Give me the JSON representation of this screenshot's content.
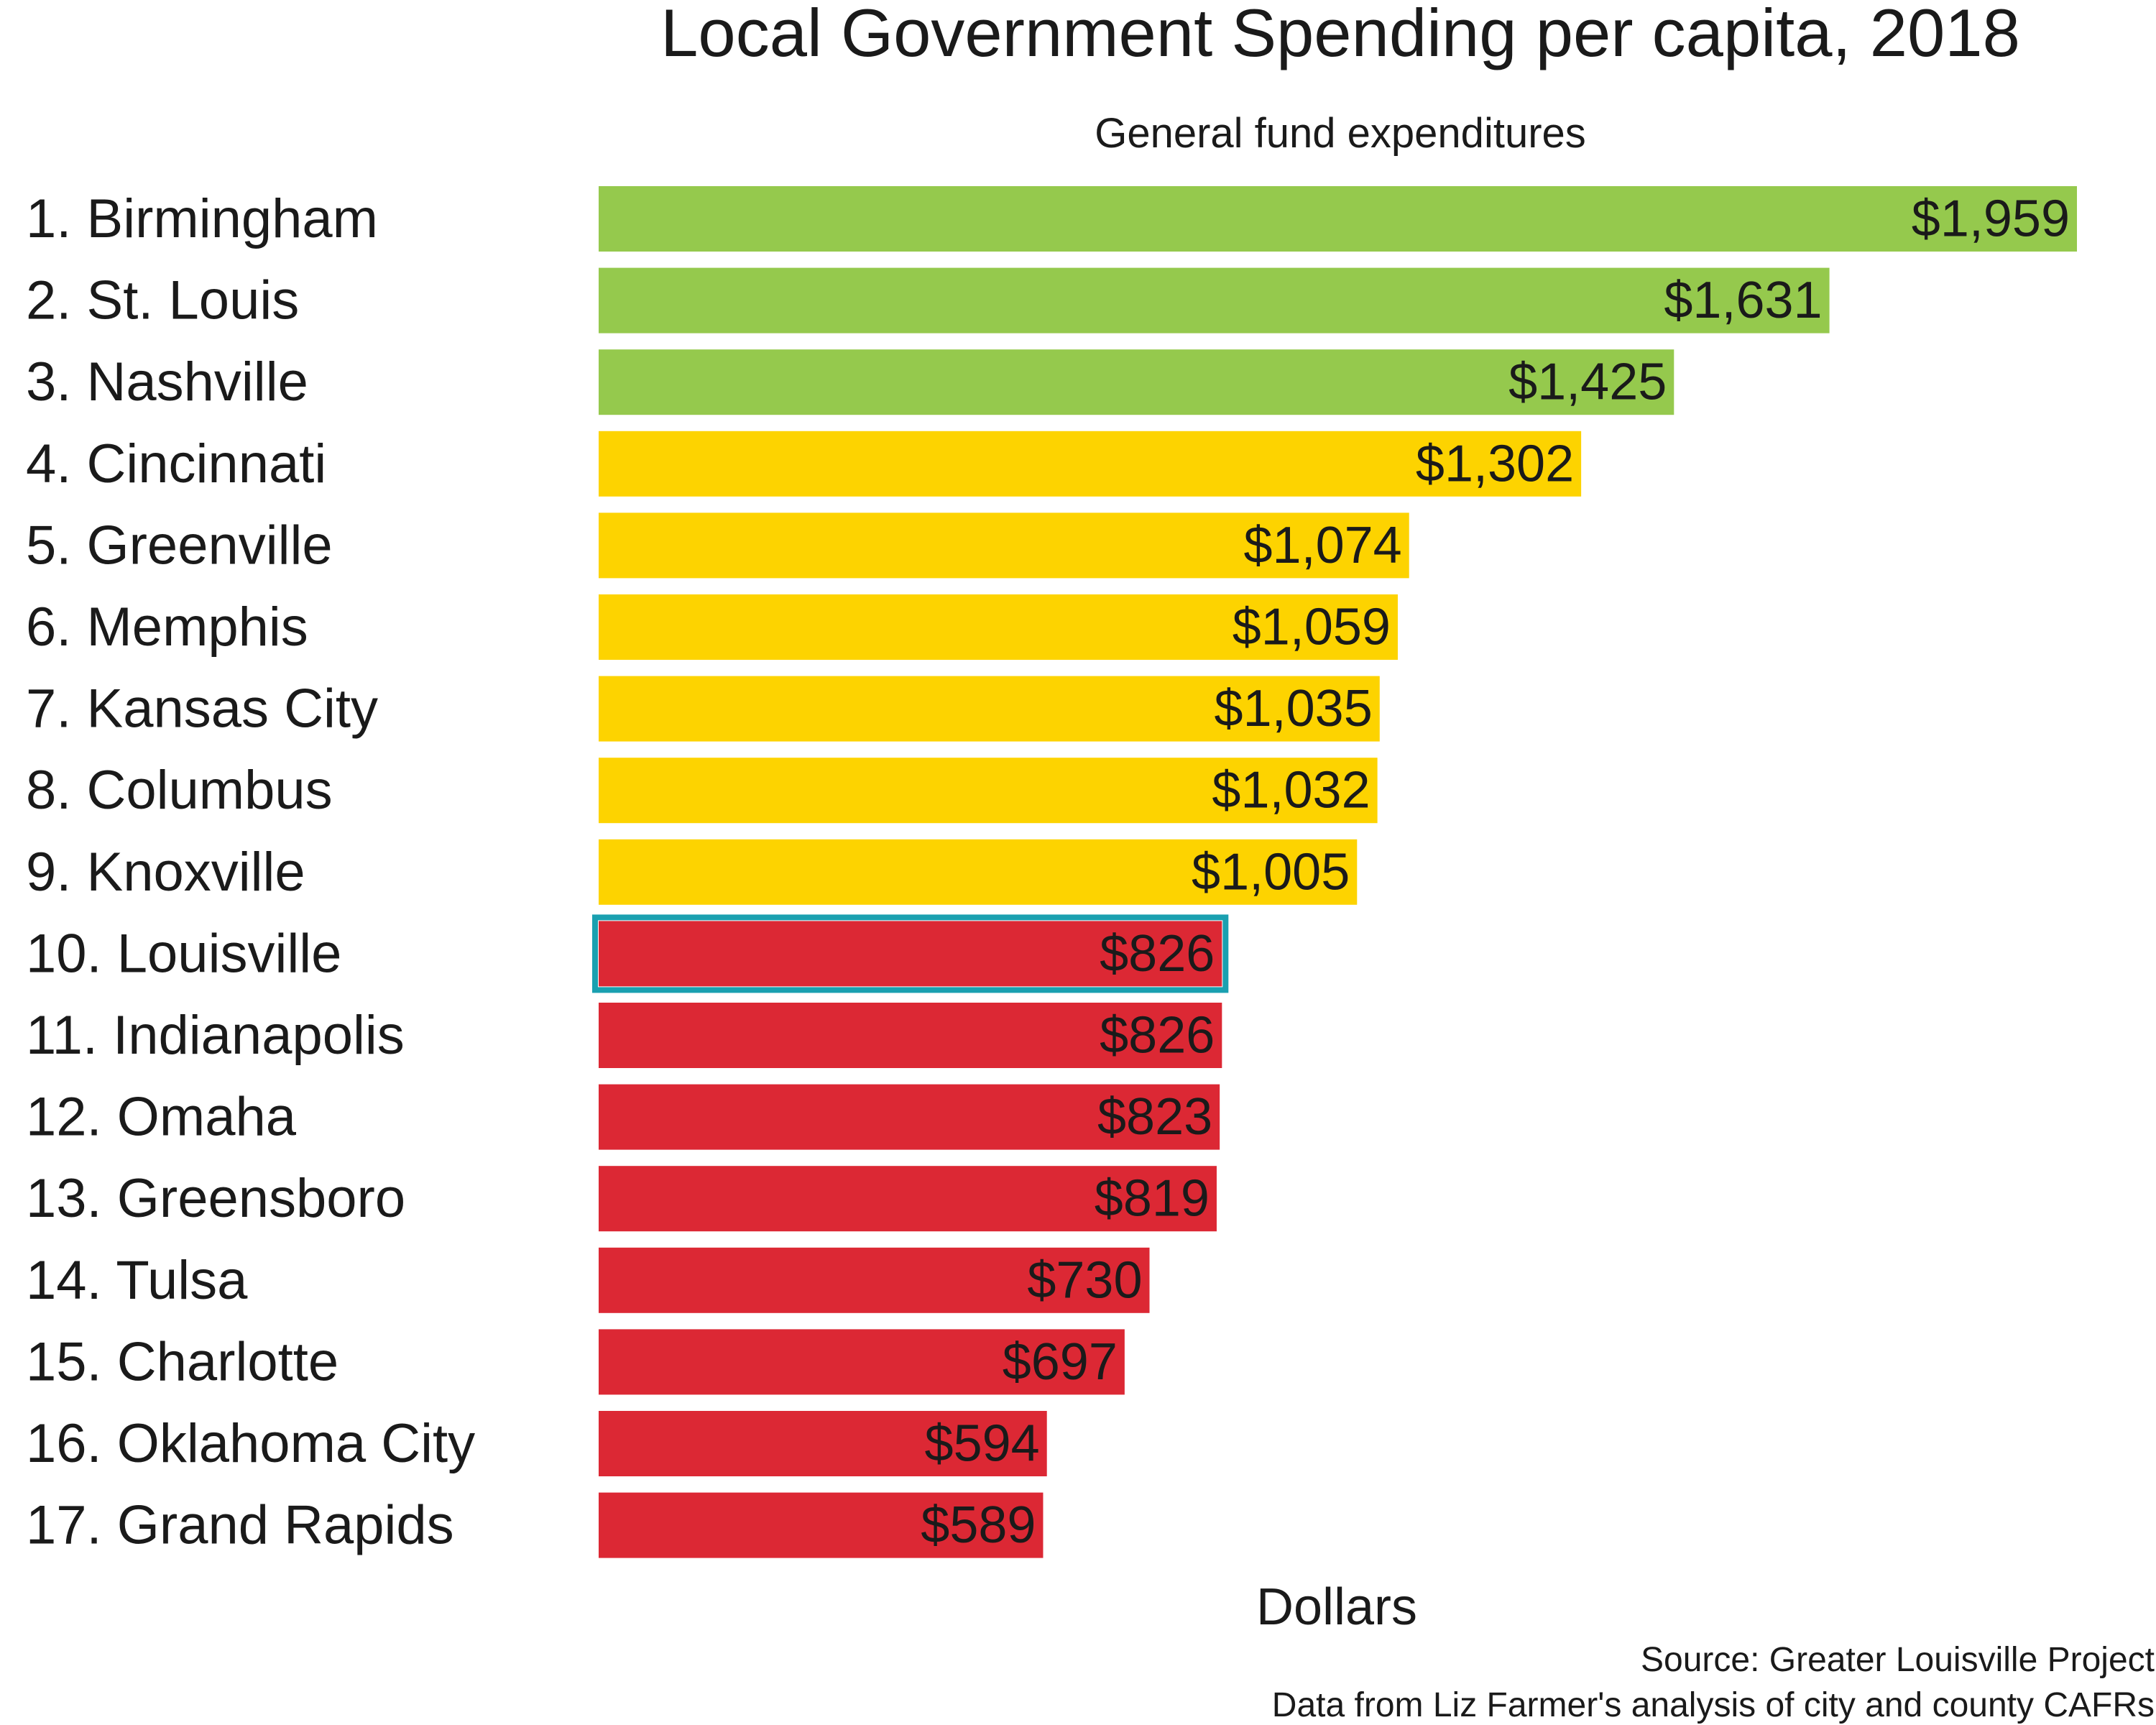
{
  "chart_data": {
    "type": "bar",
    "orientation": "horizontal",
    "title": "Local Government Spending per capita, 2018",
    "subtitle": "General fund expenditures",
    "xlabel": "Dollars",
    "ylabel": "",
    "xlim": [
      0,
      1959
    ],
    "grid": false,
    "categories": [
      "1. Birmingham",
      "2. St. Louis",
      "3. Nashville",
      "4. Cincinnati",
      "5. Greenville",
      "6. Memphis",
      "7. Kansas City",
      "8. Columbus",
      "9. Knoxville",
      "10. Louisville",
      "11. Indianapolis",
      "12. Omaha",
      "13. Greensboro",
      "14. Tulsa",
      "15. Charlotte",
      "16. Oklahoma City",
      "17. Grand Rapids"
    ],
    "values": [
      1959,
      1631,
      1425,
      1302,
      1074,
      1059,
      1035,
      1032,
      1005,
      826,
      826,
      823,
      819,
      730,
      697,
      594,
      589
    ],
    "value_labels": [
      "$1,959",
      "$1,631",
      "$1,425",
      "$1,302",
      "$1,074",
      "$1,059",
      "$1,035",
      "$1,032",
      "$1,005",
      "$826",
      "$826",
      "$823",
      "$819",
      "$730",
      "$697",
      "$594",
      "$589"
    ],
    "tiers": [
      "green",
      "green",
      "green",
      "yellow",
      "yellow",
      "yellow",
      "yellow",
      "yellow",
      "yellow",
      "red",
      "red",
      "red",
      "red",
      "red",
      "red",
      "red",
      "red"
    ],
    "colors": {
      "green": "#95c94d",
      "yellow": "#fdd300",
      "red": "#dc2834",
      "highlight": "#1aa0b0",
      "text": "#1a1a1a"
    },
    "highlight_index": 9,
    "source_lines": [
      "Source: Greater Louisville Project",
      "Data from Liz Farmer's analysis of city and county CAFRs"
    ]
  }
}
